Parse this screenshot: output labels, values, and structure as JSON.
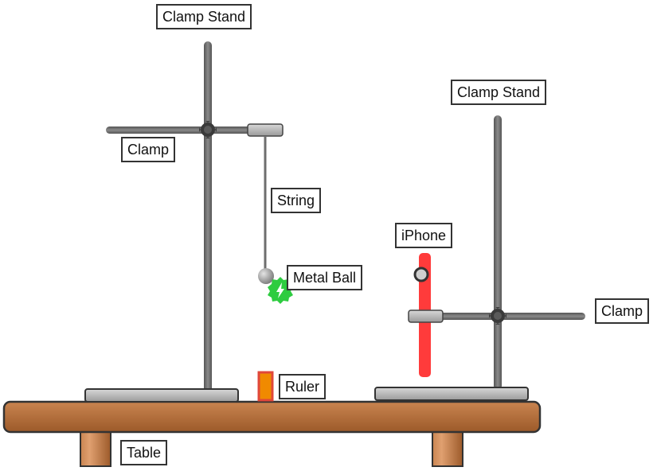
{
  "labels": {
    "clamp_stand_left": "Clamp Stand",
    "clamp_left": "Clamp",
    "string": "String",
    "metal_ball": "Metal Ball",
    "ruler": "Ruler",
    "table": "Table",
    "clamp_stand_right": "Clamp Stand",
    "iphone": "iPhone",
    "clamp_right": "Clamp"
  },
  "colors": {
    "table_wood": "#b06a34",
    "rod_gray": "#6e6e6e",
    "iphone_red": "#ff3b3b",
    "ruler_orange": "#f08a00",
    "ball_gray": "#a8a8a8",
    "sensor_green": "#2ecc40"
  },
  "icons": {
    "pivot": "knob-icon",
    "sensor": "lightning-bolt-icon"
  }
}
